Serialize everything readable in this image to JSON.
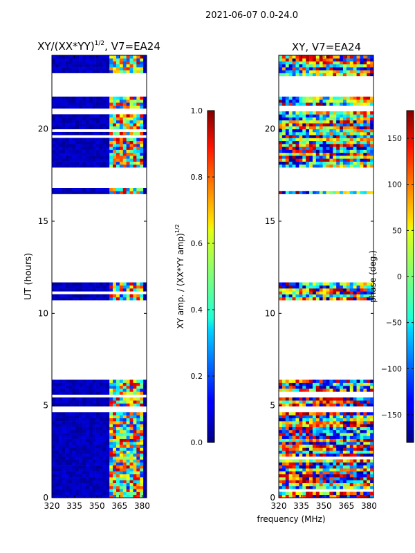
{
  "figure_title": "2021-06-07 0.0-24.0",
  "colors": {
    "background": "#ffffff",
    "gap": "#ffffff",
    "axis": "#000000"
  },
  "chart_data": [
    {
      "type": "heatmap",
      "title": "XY/(XX*YY)",
      "title_superscript": "1/2",
      "title_suffix": ", V7=EA24",
      "xlabel": "",
      "ylabel": "UT (hours)",
      "xlim": [
        320,
        383
      ],
      "ylim": [
        0,
        24
      ],
      "xticks": [
        320,
        335,
        350,
        365,
        380
      ],
      "yticks": [
        0,
        5,
        10,
        15,
        20
      ],
      "colormap": "jet",
      "data_segments_hours": [
        [
          0.0,
          4.65
        ],
        [
          4.9,
          6.45
        ],
        [
          10.8,
          11.75
        ],
        [
          16.55,
          16.8
        ],
        [
          17.9,
          21.8
        ],
        [
          22.85,
          24.0
        ]
      ],
      "high_amplitude_freq_band_MHz": [
        359,
        380
      ],
      "colorbar": {
        "label": "XY amp. / (XX*YY amp)",
        "label_superscript": "1/2",
        "range": [
          0.0,
          1.0
        ],
        "ticks": [
          "0.0",
          "0.2",
          "0.4",
          "0.6",
          "0.8",
          "1.0"
        ]
      }
    },
    {
      "type": "heatmap",
      "title": "XY, V7=EA24",
      "xlabel": "frequency (MHz)",
      "ylabel": "",
      "xlim": [
        320,
        383
      ],
      "ylim": [
        0,
        24
      ],
      "xticks": [
        320,
        335,
        350,
        365,
        380
      ],
      "yticks": [
        0,
        5,
        10,
        15,
        20
      ],
      "colormap": "jet",
      "data_segments_hours": [
        [
          0.0,
          4.65
        ],
        [
          4.9,
          6.45
        ],
        [
          10.8,
          11.75
        ],
        [
          16.55,
          16.8
        ],
        [
          17.9,
          21.8
        ],
        [
          22.85,
          24.0
        ]
      ],
      "colorbar": {
        "label": "phase (deg.)",
        "range": [
          -180,
          180
        ],
        "ticks": [
          "−150",
          "−100",
          "−50",
          "0",
          "50",
          "100",
          "150"
        ],
        "tick_values": [
          -150,
          -100,
          -50,
          0,
          50,
          100,
          150
        ]
      }
    }
  ]
}
